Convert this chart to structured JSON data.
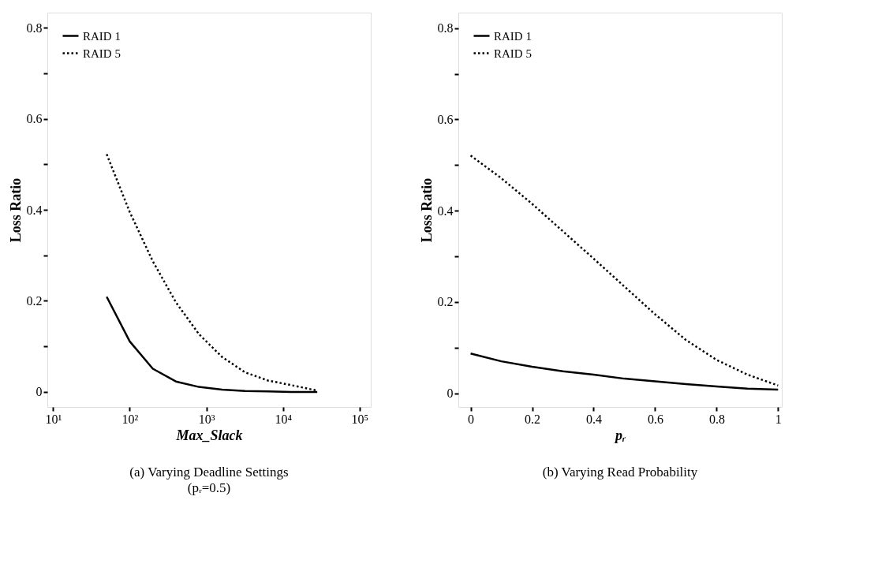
{
  "chart_data": [
    {
      "type": "line",
      "title": "(a) Varying Deadline Settings",
      "subtitle": "(pᵣ=0.5)",
      "xlabel": "Max_Slack",
      "ylabel": "Loss Ratio",
      "log": "x",
      "xlim": [
        8.4,
        140000
      ],
      "xticks": [
        {
          "value": 10,
          "label": "10¹"
        },
        {
          "value": 100,
          "label": "10²"
        },
        {
          "value": 1000,
          "label": "10³"
        },
        {
          "value": 10000,
          "label": "10⁴"
        },
        {
          "value": 100000,
          "label": "10⁵"
        }
      ],
      "ylim": [
        -0.033,
        0.833
      ],
      "yticks": [
        0,
        {
          "value": 0.1,
          "label": null
        },
        0.2,
        {
          "value": 0.3,
          "label": null
        },
        0.4,
        {
          "value": 0.5,
          "label": null
        },
        0.6,
        {
          "value": 0.7,
          "label": null
        },
        0.8
      ],
      "x": [
        50,
        100,
        200,
        400,
        800,
        1600,
        3200,
        6400,
        12800,
        28000
      ],
      "grid": false,
      "legend": "top left",
      "series": [
        {
          "name": "RAID 1",
          "color": "#000000",
          "line_style": "solid",
          "values": [
            0.209,
            0.111,
            0.051,
            0.023,
            0.011,
            0.005,
            0.002,
            0.001,
            0.0,
            0.0
          ]
        },
        {
          "name": "RAID 5",
          "color": "#000000",
          "line_style": "dotted",
          "values": [
            0.522,
            0.395,
            0.287,
            0.197,
            0.127,
            0.077,
            0.043,
            0.025,
            0.015,
            0.003
          ]
        }
      ]
    },
    {
      "type": "line",
      "title": "(b) Varying Read Probability",
      "xlabel": "pᵣ",
      "ylabel": "Loss Ratio",
      "xlim": [
        -0.04,
        1.012
      ],
      "xticks": [
        0,
        0.2,
        0.4,
        0.6,
        0.8,
        1
      ],
      "ylim": [
        -0.03,
        0.834
      ],
      "yticks": [
        0,
        {
          "value": 0.1,
          "label": null
        },
        0.2,
        {
          "value": 0.3,
          "label": null
        },
        0.4,
        {
          "value": 0.5,
          "label": null
        },
        0.6,
        {
          "value": 0.7,
          "label": null
        },
        0.8
      ],
      "x": [
        0,
        0.1,
        0.2,
        0.3,
        0.4,
        0.5,
        0.6,
        0.7,
        0.8,
        0.9,
        1.0
      ],
      "grid": false,
      "legend": "top left",
      "series": [
        {
          "name": "RAID 1",
          "color": "#000000",
          "line_style": "solid",
          "values": [
            0.087,
            0.07,
            0.058,
            0.048,
            0.041,
            0.032,
            0.026,
            0.02,
            0.015,
            0.01,
            0.008
          ]
        },
        {
          "name": "RAID 5",
          "color": "#000000",
          "line_style": "dotted",
          "values": [
            0.521,
            0.471,
            0.415,
            0.355,
            0.295,
            0.234,
            0.173,
            0.117,
            0.073,
            0.041,
            0.017
          ]
        }
      ]
    }
  ]
}
